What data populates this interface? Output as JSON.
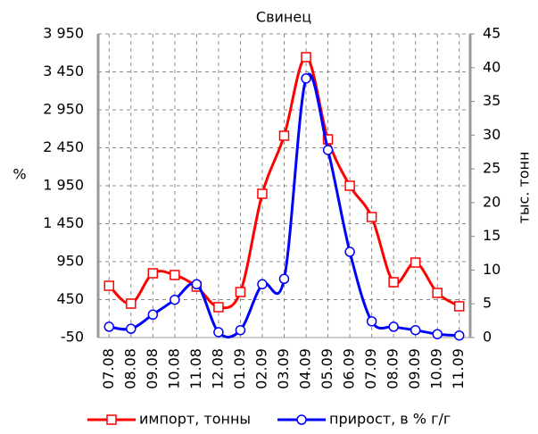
{
  "chart_data": {
    "type": "line",
    "title": "Свинец",
    "categories": [
      "07.08",
      "08.08",
      "09.08",
      "10.08",
      "11.08",
      "12.08",
      "01.09",
      "02.09",
      "03.09",
      "04.09",
      "05.09",
      "06.09",
      "07.09",
      "08.09",
      "09.09",
      "10.09",
      "11.09"
    ],
    "series": [
      {
        "name": "импорт, тонны",
        "color": "#ff0000",
        "marker": "square",
        "values": [
          632,
          397,
          797,
          774,
          621,
          350,
          550,
          1844,
          2609,
          3644,
          2562,
          1950,
          1538,
          679,
          938,
          538,
          362
        ]
      },
      {
        "name": "прирост, в % г/г",
        "color": "#0000ff",
        "marker": "circle",
        "axis": "y2",
        "values": [
          1.6,
          1.3,
          3.4,
          5.6,
          7.9,
          0.8,
          1.1,
          7.9,
          8.7,
          38.4,
          27.8,
          12.7,
          2.4,
          1.6,
          1.1,
          0.5,
          0.3
        ]
      }
    ],
    "ylabel": "%",
    "y2label": "тыс. тонн",
    "ylim": [
      -50,
      3950
    ],
    "yticks": [
      -50,
      450,
      950,
      {
        "value": 1450,
        "label": "1 450"
      },
      {
        "value": 1950,
        "label": "1 950"
      },
      {
        "value": 2450,
        "label": "2 450"
      },
      {
        "value": 2950,
        "label": "2 950"
      },
      {
        "value": 3450,
        "label": "3 450"
      },
      {
        "value": 3950,
        "label": "3 950"
      }
    ],
    "y2lim": [
      0,
      45
    ],
    "y2ticks": [
      0,
      5,
      10,
      15,
      20,
      25,
      30,
      35,
      40,
      45
    ],
    "grid": true,
    "legend": "bottom"
  }
}
